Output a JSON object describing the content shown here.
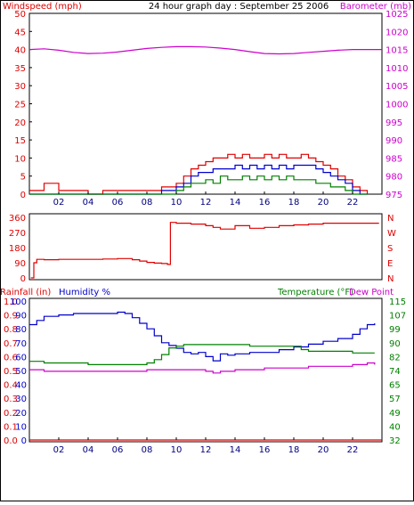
{
  "header": {
    "left_label": "Windspeed (mph)",
    "title": "24 hour graph day : September 25 2006",
    "right_label": "Barometer (mb)"
  },
  "colors": {
    "red": "#e00000",
    "blue": "#0000cc",
    "green": "#008000",
    "magenta": "#cc00cc",
    "frame": "#000000",
    "tick": "#000080"
  },
  "chart_data": [
    {
      "type": "line",
      "name": "wind-barometer",
      "x_ticks": [
        "02",
        "04",
        "06",
        "08",
        "10",
        "12",
        "14",
        "16",
        "18",
        "20",
        "22"
      ],
      "x_range": [
        0,
        24
      ],
      "y_left": {
        "label": "Windspeed (mph)",
        "ticks": [
          "0",
          "5",
          "10",
          "15",
          "20",
          "25",
          "30",
          "35",
          "40",
          "45",
          "50"
        ],
        "range": [
          0,
          50
        ]
      },
      "y_right": {
        "label": "Barometer (mb)",
        "ticks": [
          "975",
          "980",
          "985",
          "990",
          "995",
          "1000",
          "1005",
          "1010",
          "1015",
          "1020",
          "1025"
        ],
        "range": [
          975,
          1025
        ]
      },
      "series": [
        {
          "color": "red",
          "axis": "left",
          "x": [
            0,
            1,
            2,
            3,
            4,
            5,
            6,
            7,
            8,
            9,
            10,
            10.5,
            11,
            11.5,
            12,
            12.5,
            13,
            13.5,
            14,
            14.5,
            15,
            15.5,
            16,
            16.5,
            17,
            17.5,
            18,
            18.5,
            19,
            19.5,
            20,
            20.5,
            21,
            21.5,
            22,
            22.5,
            23
          ],
          "y": [
            1,
            3,
            1,
            1,
            0,
            1,
            1,
            1,
            1,
            2,
            3,
            5,
            7,
            8,
            9,
            10,
            10,
            11,
            10,
            11,
            10,
            10,
            11,
            10,
            11,
            10,
            10,
            11,
            10,
            9,
            8,
            7,
            5,
            4,
            2,
            1,
            0
          ]
        },
        {
          "color": "blue",
          "axis": "left",
          "x": [
            0,
            2,
            4,
            6,
            8,
            9,
            10,
            10.5,
            11,
            11.5,
            12,
            12.5,
            13,
            13.5,
            14,
            14.5,
            15,
            15.5,
            16,
            16.5,
            17,
            17.5,
            18,
            18.5,
            19,
            19.5,
            20,
            20.5,
            21,
            21.5,
            22,
            22.5,
            23
          ],
          "y": [
            0,
            0,
            0,
            0,
            0,
            1,
            2,
            3,
            5,
            6,
            6,
            7,
            7,
            7,
            8,
            7,
            8,
            7,
            8,
            7,
            8,
            7,
            8,
            8,
            8,
            7,
            6,
            5,
            4,
            3,
            1,
            0,
            0
          ]
        },
        {
          "color": "green",
          "axis": "left",
          "x": [
            0,
            2,
            4,
            6,
            8,
            9,
            10,
            10.5,
            11,
            11.5,
            12,
            12.5,
            13,
            13.5,
            14,
            14.5,
            15,
            15.5,
            16,
            16.5,
            17,
            17.5,
            18,
            18.5,
            19,
            19.5,
            20,
            20.5,
            21,
            21.5,
            22,
            22.5,
            23
          ],
          "y": [
            0,
            0,
            0,
            0,
            0,
            0,
            1,
            2,
            3,
            3,
            4,
            3,
            5,
            4,
            4,
            5,
            4,
            5,
            4,
            5,
            4,
            5,
            4,
            4,
            4,
            3,
            3,
            2,
            2,
            1,
            0,
            0,
            0
          ]
        },
        {
          "color": "magenta",
          "axis": "right",
          "x": [
            0,
            1,
            2,
            3,
            4,
            5,
            6,
            7,
            8,
            9,
            10,
            11,
            12,
            13,
            14,
            15,
            16,
            17,
            18,
            19,
            20,
            21,
            22,
            23,
            24
          ],
          "y": [
            1015,
            1015.2,
            1014.8,
            1014.2,
            1013.9,
            1014,
            1014.3,
            1014.8,
            1015.3,
            1015.6,
            1015.8,
            1015.8,
            1015.7,
            1015.4,
            1015,
            1014.4,
            1013.9,
            1013.8,
            1013.9,
            1014.2,
            1014.5,
            1014.8,
            1015,
            1015,
            1015
          ]
        }
      ]
    },
    {
      "type": "line",
      "name": "wind-direction",
      "x_range": [
        0,
        24
      ],
      "y_left": {
        "ticks": [
          "0",
          "90",
          "180",
          "270",
          "360"
        ],
        "range": [
          0,
          360
        ]
      },
      "y_right": {
        "ticks": [
          "N",
          "E",
          "S",
          "W",
          "N"
        ]
      },
      "series": [
        {
          "color": "red",
          "x": [
            0.1,
            0.3,
            0.5,
            1,
            2,
            3,
            4,
            5,
            6,
            7,
            7.5,
            8,
            8.5,
            9,
            9.4,
            9.5,
            9.6,
            10,
            11,
            12,
            12.5,
            13,
            14,
            15,
            16,
            17,
            18,
            19,
            20,
            21,
            22,
            23,
            23.8
          ],
          "y": [
            0,
            90,
            110,
            108,
            110,
            110,
            110,
            112,
            115,
            108,
            100,
            92,
            88,
            85,
            80,
            80,
            330,
            325,
            320,
            310,
            300,
            290,
            310,
            295,
            300,
            310,
            315,
            320,
            325,
            325,
            325,
            325,
            325
          ]
        }
      ]
    },
    {
      "type": "line",
      "name": "rain-humidity-temperature",
      "x_ticks": [
        "02",
        "04",
        "06",
        "08",
        "10",
        "12",
        "14",
        "16",
        "18",
        "20",
        "22"
      ],
      "x_range": [
        0,
        24
      ],
      "y_left_humidity": {
        "label": "Humidity %",
        "ticks": [
          "0",
          "10",
          "20",
          "30",
          "40",
          "50",
          "60",
          "70",
          "80",
          "90",
          "100"
        ],
        "range": [
          0,
          100
        ]
      },
      "y_left_rain": {
        "label": "Rainfall (in)",
        "ticks": [
          "0.0",
          "0.1",
          "0.2",
          "0.3",
          "0.4",
          "0.5",
          "0.6",
          "0.7",
          "0.8",
          "0.9",
          "1.0"
        ],
        "range": [
          0,
          1
        ]
      },
      "y_right": {
        "label_temp": "Temperature (°F)",
        "label_dew": "Dew Point",
        "ticks": [
          "32",
          "40",
          "49",
          "57",
          "65",
          "74",
          "82",
          "90",
          "99",
          "107",
          "115"
        ],
        "range": [
          32,
          115
        ]
      },
      "series": [
        {
          "color": "blue",
          "axis": "humidity",
          "x": [
            0,
            0.5,
            1,
            2,
            3,
            4,
            5,
            6,
            6.5,
            7,
            7.5,
            8,
            8.5,
            9,
            9.5,
            10,
            10.5,
            11,
            11.5,
            12,
            12.5,
            13,
            13.5,
            14,
            15,
            16,
            17,
            18,
            19,
            20,
            21,
            22,
            22.5,
            23,
            23.5
          ],
          "y": [
            83,
            86,
            89,
            90,
            91,
            91,
            91,
            92,
            91,
            88,
            84,
            80,
            75,
            70,
            68,
            66,
            63,
            62,
            63,
            60,
            57,
            62,
            61,
            62,
            63,
            63,
            65,
            67,
            69,
            71,
            73,
            76,
            80,
            83,
            84
          ]
        },
        {
          "color": "green",
          "axis": "temp",
          "x": [
            0,
            1,
            2,
            3,
            4,
            5,
            6,
            7,
            8,
            8.5,
            9,
            9.5,
            10,
            10.5,
            11,
            11.5,
            12,
            13,
            14,
            15,
            16,
            17,
            18,
            18.5,
            19,
            20,
            21,
            22,
            23,
            23.5
          ],
          "y": [
            79,
            78,
            78,
            78,
            77,
            77,
            77,
            77,
            78,
            80,
            83,
            87,
            88,
            89,
            89,
            89,
            89,
            89,
            89,
            88,
            88,
            88,
            88,
            86,
            85,
            85,
            85,
            84,
            84,
            84
          ]
        },
        {
          "color": "magenta",
          "axis": "temp",
          "x": [
            0,
            1,
            2,
            3,
            4,
            5,
            6,
            7,
            8,
            9,
            10,
            11,
            12,
            12.5,
            13,
            14,
            15,
            16,
            17,
            18,
            19,
            20,
            21,
            22,
            23,
            23.5
          ],
          "y": [
            74,
            73,
            73,
            73,
            73,
            73,
            73,
            73,
            74,
            74,
            74,
            74,
            73,
            72,
            73,
            74,
            74,
            75,
            75,
            75,
            76,
            76,
            76,
            77,
            78,
            77
          ]
        },
        {
          "color": "red",
          "axis": "rain",
          "x": [
            0,
            24
          ],
          "y": [
            0,
            0
          ]
        }
      ]
    }
  ],
  "panel3_header": {
    "rain_label": "Rainfall (in)",
    "humidity_label": "Humidity %",
    "temp_label": "Temperature (°F)",
    "dew_label": "Dew Point"
  }
}
